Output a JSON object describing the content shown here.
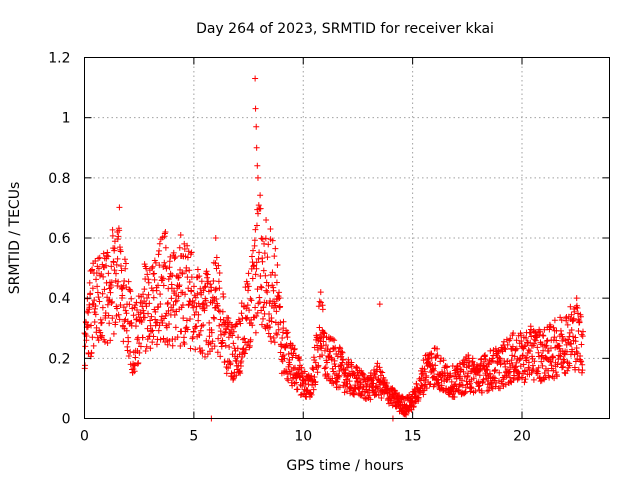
{
  "chart_data": {
    "type": "scatter",
    "title": "Day 264 of 2023, SRMTID for receiver kkai",
    "xlabel": "GPS time / hours",
    "ylabel": "SRMTID / TECUs",
    "xlim": [
      0,
      24
    ],
    "ylim": [
      0,
      1.2
    ],
    "xticks": [
      0,
      5,
      10,
      15,
      20
    ],
    "xtick_labels": [
      "0",
      "5",
      "10",
      "15",
      "20"
    ],
    "yticks": [
      0,
      0.2,
      0.4,
      0.6,
      0.8,
      1.0,
      1.2
    ],
    "ytick_labels": [
      "0",
      "0.2",
      "0.4",
      "0.6",
      "0.8",
      "1",
      "1.2"
    ],
    "grid": true,
    "marker": "+",
    "color": "#ff0000",
    "series": [
      {
        "name": "SRMTID",
        "trend_x": [
          0.0,
          0.3,
          0.6,
          1.0,
          1.3,
          1.6,
          2.0,
          2.2,
          2.5,
          2.8,
          3.0,
          3.3,
          3.6,
          3.9,
          4.2,
          4.5,
          4.8,
          5.1,
          5.4,
          5.7,
          6.0,
          6.2,
          6.5,
          6.8,
          7.1,
          7.4,
          7.6,
          7.8,
          8.0,
          8.2,
          8.4,
          8.6,
          8.8,
          9.0,
          9.3,
          9.6,
          10.0,
          10.3,
          10.6,
          10.8,
          11.0,
          11.5,
          12.0,
          12.5,
          13.0,
          13.4,
          13.8,
          14.1,
          14.4,
          14.7,
          15.0,
          15.3,
          15.6,
          16.0,
          16.5,
          17.0,
          17.5,
          18.0,
          18.5,
          19.0,
          19.5,
          20.0,
          20.5,
          21.0,
          21.5,
          22.0,
          22.4,
          22.8
        ],
        "trend_y": [
          0.25,
          0.36,
          0.4,
          0.38,
          0.45,
          0.5,
          0.35,
          0.25,
          0.3,
          0.38,
          0.35,
          0.4,
          0.45,
          0.38,
          0.4,
          0.42,
          0.4,
          0.37,
          0.33,
          0.36,
          0.4,
          0.35,
          0.25,
          0.22,
          0.25,
          0.32,
          0.38,
          0.45,
          0.55,
          0.45,
          0.42,
          0.45,
          0.38,
          0.25,
          0.2,
          0.17,
          0.12,
          0.1,
          0.2,
          0.32,
          0.2,
          0.18,
          0.14,
          0.12,
          0.1,
          0.13,
          0.09,
          0.07,
          0.05,
          0.04,
          0.06,
          0.1,
          0.16,
          0.18,
          0.13,
          0.12,
          0.15,
          0.14,
          0.16,
          0.17,
          0.2,
          0.2,
          0.22,
          0.21,
          0.23,
          0.26,
          0.28,
          0.25
        ],
        "peaks": [
          {
            "x": 7.8,
            "y": 1.13
          },
          {
            "x": 7.82,
            "y": 1.03
          },
          {
            "x": 7.85,
            "y": 0.97
          },
          {
            "x": 7.87,
            "y": 0.9
          },
          {
            "x": 7.9,
            "y": 0.84
          },
          {
            "x": 7.93,
            "y": 0.8
          },
          {
            "x": 8.3,
            "y": 0.66
          },
          {
            "x": 1.5,
            "y": 0.62
          },
          {
            "x": 3.7,
            "y": 0.62
          },
          {
            "x": 4.4,
            "y": 0.61
          },
          {
            "x": 6.0,
            "y": 0.6
          },
          {
            "x": 8.5,
            "y": 0.63
          },
          {
            "x": 10.8,
            "y": 0.42
          },
          {
            "x": 13.5,
            "y": 0.38
          },
          {
            "x": 22.5,
            "y": 0.4
          },
          {
            "x": 5.8,
            "y": 0.0
          },
          {
            "x": 14.1,
            "y": 0.0
          }
        ]
      }
    ]
  }
}
